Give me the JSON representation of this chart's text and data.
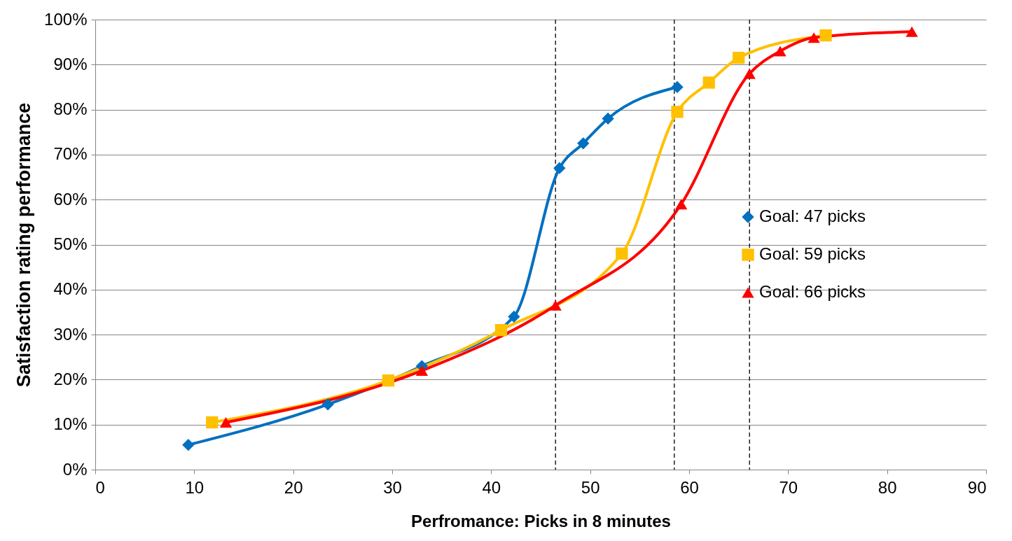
{
  "chart_data": {
    "type": "line",
    "xlabel": "Perfromance: Picks in 8 minutes",
    "ylabel": "Satisfaction rating performance",
    "xlim": [
      0,
      90
    ],
    "xticks": [
      0,
      10,
      20,
      30,
      40,
      50,
      60,
      70,
      80,
      90
    ],
    "ylim": [
      0,
      100
    ],
    "yticks": [
      {
        "value": 0,
        "label": "0%"
      },
      {
        "value": 10,
        "label": "10%"
      },
      {
        "value": 20,
        "label": "20%"
      },
      {
        "value": 30,
        "label": "30%"
      },
      {
        "value": 40,
        "label": "40%"
      },
      {
        "value": 50,
        "label": "50%"
      },
      {
        "value": 60,
        "label": "60%"
      },
      {
        "value": 70,
        "label": "70%"
      },
      {
        "value": 80,
        "label": "80%"
      },
      {
        "value": 90,
        "label": "90%"
      },
      {
        "value": 100,
        "label": "100%"
      }
    ],
    "grid": "y",
    "legend": "right",
    "series": [
      {
        "name": "Goal: 47 picks",
        "color": "#0070c0",
        "marker": "diamond",
        "x": [
          9.4,
          23.5,
          33,
          42.3,
          46.9,
          49.3,
          51.8,
          58.8
        ],
        "values": [
          5.5,
          14.5,
          23,
          34,
          67,
          72.5,
          78,
          85
        ]
      },
      {
        "name": "Goal: 59 picks",
        "color": "#ffc000",
        "marker": "square",
        "x": [
          11.8,
          29.6,
          41,
          53.2,
          58.8,
          62,
          65,
          73.8
        ],
        "values": [
          10.5,
          19.8,
          31,
          48,
          79.5,
          86,
          91.5,
          96.5
        ]
      },
      {
        "name": "Goal: 66 picks",
        "color": "#ff0000",
        "marker": "triangle",
        "x": [
          13.2,
          33,
          46.5,
          59.2,
          66.1,
          69.2,
          72.6,
          82.5
        ],
        "values": [
          10.5,
          22,
          36.5,
          59,
          88,
          93,
          96,
          97.3
        ]
      }
    ],
    "ref_lines": [
      {
        "axis": "x",
        "value": 46.5,
        "color": "#000000",
        "line_style": "dashed"
      },
      {
        "axis": "x",
        "value": 58.5,
        "color": "#000000",
        "line_style": "dashed"
      },
      {
        "axis": "x",
        "value": 66.1,
        "color": "#000000",
        "line_style": "dashed"
      }
    ]
  }
}
